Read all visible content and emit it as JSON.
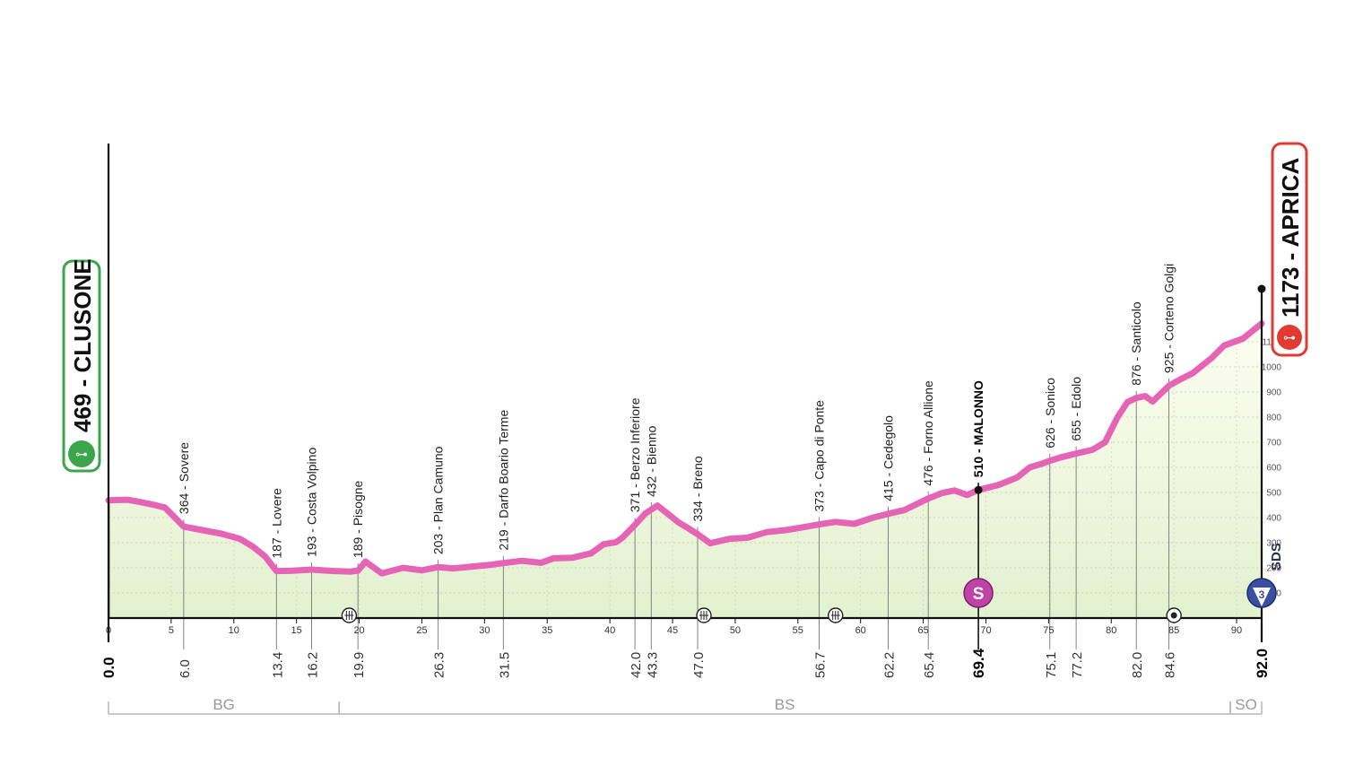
{
  "chart_data": {
    "type": "area",
    "xlim": [
      0,
      92
    ],
    "ylim": [
      0,
      1173
    ],
    "x_ticks": [
      0,
      5,
      10,
      15,
      20,
      25,
      30,
      35,
      40,
      45,
      50,
      55,
      60,
      65,
      70,
      75,
      80,
      85,
      90
    ],
    "y_ticks": [
      100,
      200,
      300,
      400,
      500,
      600,
      700,
      800,
      900,
      1000,
      1100
    ],
    "grid": true,
    "colors": {
      "line": "#e564b5",
      "fill_top": "#fbfbe8",
      "fill_bottom": "#e2f1cf",
      "start": "#3aa54b",
      "finish": "#e03a33",
      "sprint": "#c043a7",
      "kom": "#3a4ea3"
    },
    "start": {
      "label": "469 - CLUSONE",
      "km": "0.0",
      "altitude": 469
    },
    "finish": {
      "label": "1173 - APRICA",
      "km": "92.0",
      "altitude": 1173
    },
    "profile": [
      [
        0,
        469
      ],
      [
        1.5,
        471
      ],
      [
        2.5,
        462
      ],
      [
        3.5,
        452
      ],
      [
        4.5,
        440
      ],
      [
        5.2,
        405
      ],
      [
        6,
        364
      ],
      [
        7.5,
        350
      ],
      [
        9,
        336
      ],
      [
        10.5,
        315
      ],
      [
        11.5,
        285
      ],
      [
        12.5,
        245
      ],
      [
        13.4,
        187
      ],
      [
        14.5,
        188
      ],
      [
        16.2,
        193
      ],
      [
        18,
        187
      ],
      [
        19.3,
        185
      ],
      [
        19.9,
        189
      ],
      [
        20.5,
        225
      ],
      [
        21.8,
        178
      ],
      [
        23.5,
        200
      ],
      [
        25,
        190
      ],
      [
        26.3,
        203
      ],
      [
        27.5,
        198
      ],
      [
        29,
        205
      ],
      [
        30.5,
        212
      ],
      [
        31.5,
        219
      ],
      [
        33,
        228
      ],
      [
        34.5,
        220
      ],
      [
        35.5,
        238
      ],
      [
        37,
        240
      ],
      [
        38.5,
        258
      ],
      [
        39.5,
        294
      ],
      [
        40.5,
        302
      ],
      [
        41,
        320
      ],
      [
        42,
        371
      ],
      [
        42.8,
        415
      ],
      [
        43.3,
        432
      ],
      [
        43.8,
        448
      ],
      [
        44.5,
        420
      ],
      [
        45.5,
        380
      ],
      [
        46.3,
        356
      ],
      [
        47,
        334
      ],
      [
        48,
        298
      ],
      [
        49.5,
        315
      ],
      [
        51,
        320
      ],
      [
        52.5,
        342
      ],
      [
        54,
        350
      ],
      [
        55.5,
        362
      ],
      [
        56.7,
        373
      ],
      [
        58,
        383
      ],
      [
        59.5,
        375
      ],
      [
        61,
        400
      ],
      [
        62.2,
        415
      ],
      [
        63.5,
        430
      ],
      [
        65.4,
        476
      ],
      [
        66.5,
        498
      ],
      [
        67.5,
        508
      ],
      [
        68.5,
        490
      ],
      [
        69.4,
        510
      ],
      [
        71,
        530
      ],
      [
        72.5,
        560
      ],
      [
        73.5,
        600
      ],
      [
        74.5,
        615
      ],
      [
        75.1,
        626
      ],
      [
        76,
        640
      ],
      [
        77.2,
        655
      ],
      [
        78.5,
        670
      ],
      [
        79.5,
        700
      ],
      [
        80.5,
        800
      ],
      [
        81.3,
        860
      ],
      [
        82,
        876
      ],
      [
        82.7,
        884
      ],
      [
        83.3,
        862
      ],
      [
        84.6,
        925
      ],
      [
        85.5,
        950
      ],
      [
        86.5,
        975
      ],
      [
        88,
        1035
      ],
      [
        89,
        1085
      ],
      [
        90.5,
        1112
      ],
      [
        92,
        1173
      ]
    ],
    "waypoints": [
      {
        "km": 6.0,
        "km_label": "6.0",
        "label": "364 - Sovere",
        "altitude": 364
      },
      {
        "km": 13.4,
        "km_label": "13.4",
        "label": "187 - Lovere",
        "altitude": 187
      },
      {
        "km": 16.2,
        "km_label": "16.2",
        "label": "193 - Costa Volpino",
        "altitude": 193
      },
      {
        "km": 19.9,
        "km_label": "19.9",
        "label": "189 - Pisogne",
        "altitude": 189
      },
      {
        "km": 26.3,
        "km_label": "26.3",
        "label": "203 - Plan Camuno",
        "altitude": 203
      },
      {
        "km": 31.5,
        "km_label": "31.5",
        "label": "219 - Darfo Boario Terme",
        "altitude": 219
      },
      {
        "km": 42.0,
        "km_label": "42.0",
        "label": "371 - Berzo Inferiore",
        "altitude": 371
      },
      {
        "km": 43.3,
        "km_label": "43.3",
        "label": "432 - Bienno",
        "altitude": 432
      },
      {
        "km": 47.0,
        "km_label": "47.0",
        "label": "334 - Breno",
        "altitude": 334
      },
      {
        "km": 56.7,
        "km_label": "56.7",
        "label": "373 - Capo di Ponte",
        "altitude": 373
      },
      {
        "km": 62.2,
        "km_label": "62.2",
        "label": "415 - Cedegolo",
        "altitude": 415
      },
      {
        "km": 65.4,
        "km_label": "65.4",
        "label": "476 - Forno Allione",
        "altitude": 476
      },
      {
        "km": 69.4,
        "km_label": "69.4",
        "label": "510 - MALONNO",
        "altitude": 510,
        "bold": true,
        "sprint": true
      },
      {
        "km": 75.1,
        "km_label": "75.1",
        "label": "626 - Sonico",
        "altitude": 626
      },
      {
        "km": 77.2,
        "km_label": "77.2",
        "label": "655 - Edolo",
        "altitude": 655
      },
      {
        "km": 82.0,
        "km_label": "82.0",
        "label": "876 - Santicolo",
        "altitude": 876
      },
      {
        "km": 84.6,
        "km_label": "84.6",
        "label": "925 - Corteno Golgi",
        "altitude": 925
      }
    ],
    "sprint_marker": {
      "km": 69.4,
      "letter": "S"
    },
    "kom_marker": {
      "km": 92.0,
      "category": "3"
    },
    "railway_crossings": [
      19.2,
      47.5,
      58.0
    ],
    "roundabout": [
      85.0
    ],
    "provinces": [
      {
        "label": "BG",
        "from": 0,
        "to": 18.4
      },
      {
        "label": "BS",
        "from": 18.4,
        "to": 89.5
      },
      {
        "label": "SO",
        "from": 89.5,
        "to": 92.0
      }
    ],
    "sponsor_mark": "SDS"
  }
}
